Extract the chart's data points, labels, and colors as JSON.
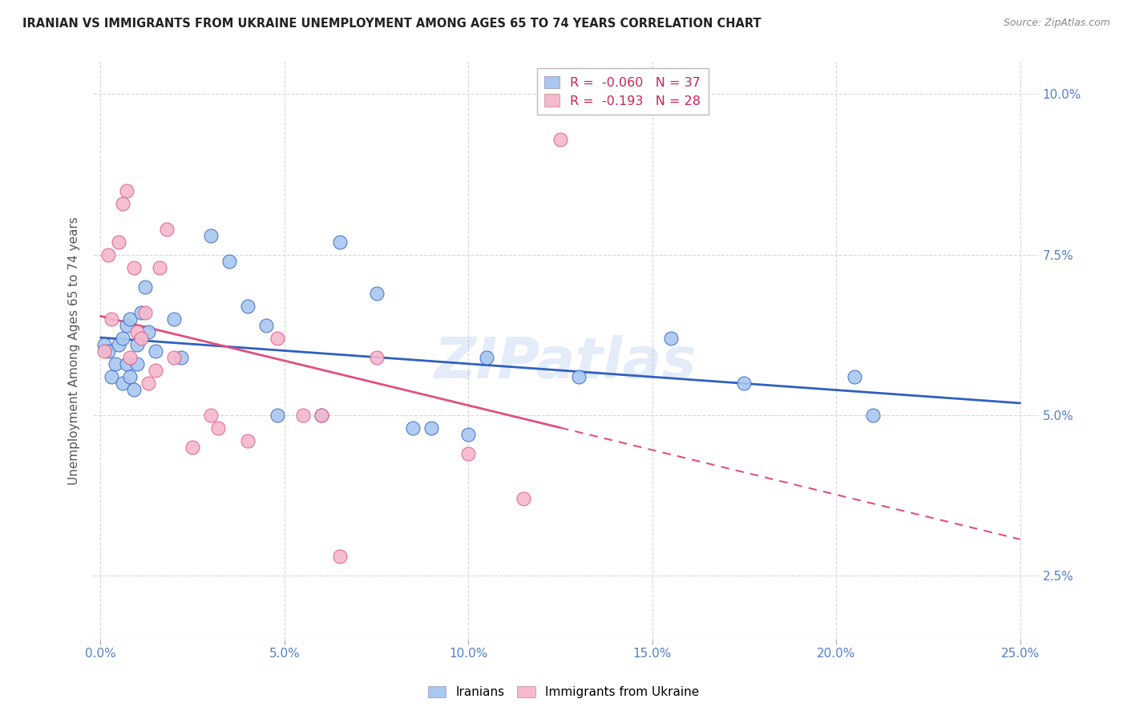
{
  "title": "IRANIAN VS IMMIGRANTS FROM UKRAINE UNEMPLOYMENT AMONG AGES 65 TO 74 YEARS CORRELATION CHART",
  "source": "Source: ZipAtlas.com",
  "ylabel": "Unemployment Among Ages 65 to 74 years",
  "xlabel_ticks": [
    "0.0%",
    "5.0%",
    "10.0%",
    "15.0%",
    "20.0%",
    "25.0%"
  ],
  "xlabel_vals": [
    0.0,
    0.05,
    0.1,
    0.15,
    0.2,
    0.25
  ],
  "ylabel_ticks": [
    "2.5%",
    "5.0%",
    "7.5%",
    "10.0%"
  ],
  "ylabel_vals": [
    0.025,
    0.05,
    0.075,
    0.1
  ],
  "xlim": [
    -0.002,
    0.255
  ],
  "ylim": [
    0.015,
    0.105
  ],
  "legend_label_iranians": "R =  -0.060   N = 37",
  "legend_label_ukraine": "R =  -0.193   N = 28",
  "iranians_color": "#a8c8f0",
  "ukraine_color": "#f5b8cc",
  "trendline_iranians_color": "#3060c0",
  "trendline_ukraine_color": "#e05080",
  "background_color": "#ffffff",
  "grid_color": "#cccccc",
  "watermark": "ZIPatlas",
  "axis_color": "#5080cc",
  "iranians_x": [
    0.001,
    0.002,
    0.003,
    0.004,
    0.005,
    0.006,
    0.006,
    0.007,
    0.007,
    0.008,
    0.008,
    0.009,
    0.01,
    0.01,
    0.011,
    0.012,
    0.013,
    0.015,
    0.02,
    0.022,
    0.03,
    0.035,
    0.04,
    0.045,
    0.048,
    0.06,
    0.065,
    0.075,
    0.085,
    0.09,
    0.1,
    0.105,
    0.13,
    0.155,
    0.175,
    0.205,
    0.21
  ],
  "iranians_y": [
    0.061,
    0.06,
    0.056,
    0.058,
    0.061,
    0.055,
    0.062,
    0.058,
    0.064,
    0.065,
    0.056,
    0.054,
    0.061,
    0.058,
    0.066,
    0.07,
    0.063,
    0.06,
    0.065,
    0.059,
    0.078,
    0.074,
    0.067,
    0.064,
    0.05,
    0.05,
    0.077,
    0.069,
    0.048,
    0.048,
    0.047,
    0.059,
    0.056,
    0.062,
    0.055,
    0.056,
    0.05
  ],
  "ukraine_x": [
    0.001,
    0.002,
    0.003,
    0.005,
    0.006,
    0.007,
    0.008,
    0.009,
    0.01,
    0.011,
    0.012,
    0.013,
    0.015,
    0.016,
    0.018,
    0.02,
    0.025,
    0.03,
    0.032,
    0.04,
    0.048,
    0.055,
    0.06,
    0.065,
    0.075,
    0.1,
    0.115,
    0.125
  ],
  "ukraine_y": [
    0.06,
    0.075,
    0.065,
    0.077,
    0.083,
    0.085,
    0.059,
    0.073,
    0.063,
    0.062,
    0.066,
    0.055,
    0.057,
    0.073,
    0.079,
    0.059,
    0.045,
    0.05,
    0.048,
    0.046,
    0.062,
    0.05,
    0.05,
    0.028,
    0.059,
    0.044,
    0.037,
    0.093
  ]
}
